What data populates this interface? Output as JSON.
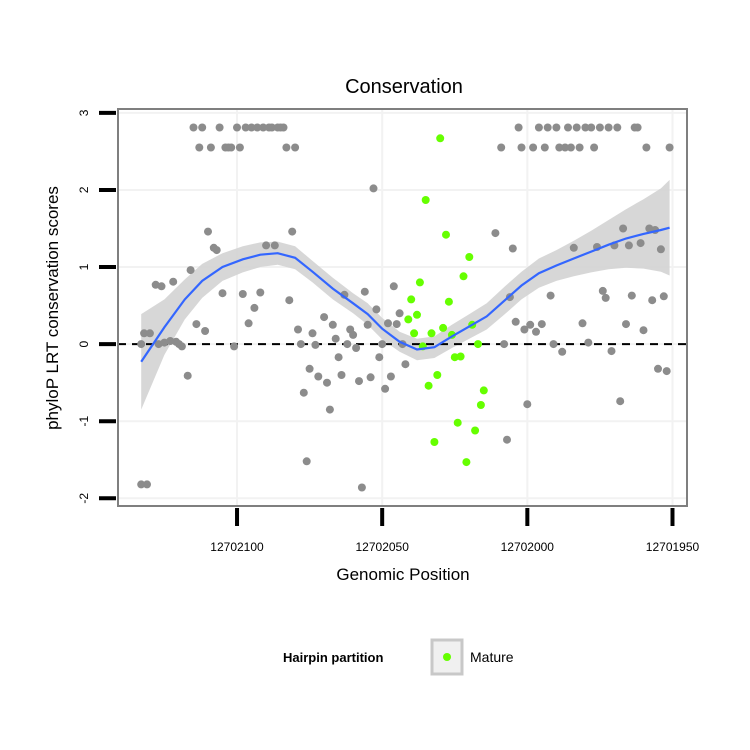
{
  "chart_data": {
    "type": "scatter",
    "title": "Conservation",
    "xlabel": "Genomic Position",
    "ylabel": "phyloP LRT conservation scores",
    "x_reversed": true,
    "xlim": [
      12702141,
      12701945
    ],
    "ylim": [
      -2.1,
      3.05
    ],
    "x_ticks": [
      {
        "value": 12702100,
        "label": "12702100"
      },
      {
        "value": 12702050,
        "label": "12702050"
      },
      {
        "value": 12702000,
        "label": "12702000"
      },
      {
        "value": 12701950,
        "label": "12701950"
      }
    ],
    "y_ticks": [
      {
        "value": -2,
        "label": "-2"
      },
      {
        "value": -1,
        "label": "-1"
      },
      {
        "value": 0,
        "label": "0"
      },
      {
        "value": 1,
        "label": "1"
      },
      {
        "value": 2,
        "label": "2"
      },
      {
        "value": 3,
        "label": "3"
      }
    ],
    "grid": true,
    "reference_line": {
      "y": 0,
      "style": "dashed"
    },
    "colors": {
      "other": "#8c8c8c",
      "mature": "#66ff00",
      "smooth_line": "#3366ff",
      "confidence_band": "#d3d3d3",
      "grid": "#f2f2f2",
      "panel_border": "#7f7f7f"
    },
    "series": [
      {
        "name": "",
        "role": "other",
        "points": [
          [
            12702133,
            0.0
          ],
          [
            12702133,
            -1.82
          ],
          [
            12702131,
            -1.82
          ],
          [
            12702132,
            0.14
          ],
          [
            12702130,
            0.14
          ],
          [
            12702128,
            0.77
          ],
          [
            12702126,
            0.75
          ],
          [
            12702127,
            0.0
          ],
          [
            12702125,
            0.02
          ],
          [
            12702123,
            0.04
          ],
          [
            12702122,
            0.81
          ],
          [
            12702121,
            0.03
          ],
          [
            12702120,
            0.0
          ],
          [
            12702119,
            -0.03
          ],
          [
            12702117,
            -0.41
          ],
          [
            12702116,
            0.96
          ],
          [
            12702115,
            2.81
          ],
          [
            12702114,
            0.26
          ],
          [
            12702113,
            2.55
          ],
          [
            12702112,
            2.81
          ],
          [
            12702111,
            0.17
          ],
          [
            12702110,
            1.46
          ],
          [
            12702109,
            2.55
          ],
          [
            12702108,
            1.25
          ],
          [
            12702107,
            1.22
          ],
          [
            12702106,
            2.81
          ],
          [
            12702105,
            0.66
          ],
          [
            12702104,
            2.55
          ],
          [
            12702103,
            2.55
          ],
          [
            12702102,
            2.55
          ],
          [
            12702101,
            -0.03
          ],
          [
            12702100,
            2.81
          ],
          [
            12702099,
            2.55
          ],
          [
            12702098,
            0.65
          ],
          [
            12702097,
            2.81
          ],
          [
            12702096,
            0.27
          ],
          [
            12702095,
            2.81
          ],
          [
            12702094,
            0.47
          ],
          [
            12702093,
            2.81
          ],
          [
            12702092,
            0.67
          ],
          [
            12702091,
            2.81
          ],
          [
            12702090,
            1.28
          ],
          [
            12702089,
            2.81
          ],
          [
            12702088,
            2.81
          ],
          [
            12702087,
            1.28
          ],
          [
            12702086,
            2.81
          ],
          [
            12702085,
            2.81
          ],
          [
            12702084,
            2.81
          ],
          [
            12702083,
            2.55
          ],
          [
            12702082,
            0.57
          ],
          [
            12702081,
            1.46
          ],
          [
            12702080,
            2.55
          ],
          [
            12702079,
            0.19
          ],
          [
            12702078,
            0.0
          ],
          [
            12702077,
            -0.63
          ],
          [
            12702076,
            -1.52
          ],
          [
            12702075,
            -0.32
          ],
          [
            12702074,
            0.14
          ],
          [
            12702073,
            -0.01
          ],
          [
            12702072,
            -0.42
          ],
          [
            12702070,
            0.35
          ],
          [
            12702069,
            -0.5
          ],
          [
            12702068,
            -0.85
          ],
          [
            12702067,
            0.25
          ],
          [
            12702066,
            0.07
          ],
          [
            12702065,
            -0.17
          ],
          [
            12702064,
            -0.4
          ],
          [
            12702063,
            0.64
          ],
          [
            12702062,
            0.0
          ],
          [
            12702061,
            0.19
          ],
          [
            12702060,
            0.12
          ],
          [
            12702059,
            -0.05
          ],
          [
            12702058,
            -0.48
          ],
          [
            12702057,
            -1.86
          ],
          [
            12702056,
            0.68
          ],
          [
            12702055,
            0.25
          ],
          [
            12702054,
            -0.43
          ],
          [
            12702053,
            2.02
          ],
          [
            12702052,
            0.45
          ],
          [
            12702051,
            -0.17
          ],
          [
            12702050,
            0.0
          ],
          [
            12702049,
            -0.58
          ],
          [
            12702048,
            0.27
          ],
          [
            12702047,
            -0.42
          ],
          [
            12702046,
            0.75
          ],
          [
            12702045,
            0.26
          ],
          [
            12702044,
            0.4
          ],
          [
            12702043,
            0.0
          ],
          [
            12702042,
            -0.26
          ],
          [
            12702011,
            1.44
          ],
          [
            12702009,
            2.55
          ],
          [
            12702008,
            0.0
          ],
          [
            12702007,
            -1.24
          ],
          [
            12702006,
            0.61
          ],
          [
            12702005,
            1.24
          ],
          [
            12702004,
            0.29
          ],
          [
            12702003,
            2.81
          ],
          [
            12702002,
            2.55
          ],
          [
            12702001,
            0.19
          ],
          [
            12702000,
            -0.78
          ],
          [
            12701999,
            0.25
          ],
          [
            12701998,
            2.55
          ],
          [
            12701997,
            0.16
          ],
          [
            12701996,
            2.81
          ],
          [
            12701995,
            0.26
          ],
          [
            12701994,
            2.55
          ],
          [
            12701993,
            2.81
          ],
          [
            12701992,
            0.63
          ],
          [
            12701991,
            0.0
          ],
          [
            12701990,
            2.81
          ],
          [
            12701989,
            2.55
          ],
          [
            12701988,
            -0.1
          ],
          [
            12701987,
            2.55
          ],
          [
            12701986,
            2.81
          ],
          [
            12701985,
            2.55
          ],
          [
            12701984,
            1.25
          ],
          [
            12701983,
            2.81
          ],
          [
            12701982,
            2.55
          ],
          [
            12701981,
            0.27
          ],
          [
            12701980,
            2.81
          ],
          [
            12701979,
            0.02
          ],
          [
            12701978,
            2.81
          ],
          [
            12701977,
            2.55
          ],
          [
            12701976,
            1.26
          ],
          [
            12701975,
            2.81
          ],
          [
            12701974,
            0.69
          ],
          [
            12701973,
            0.6
          ],
          [
            12701972,
            2.81
          ],
          [
            12701971,
            -0.09
          ],
          [
            12701970,
            1.28
          ],
          [
            12701969,
            2.81
          ],
          [
            12701968,
            -0.74
          ],
          [
            12701967,
            1.5
          ],
          [
            12701966,
            0.26
          ],
          [
            12701965,
            1.28
          ],
          [
            12701964,
            0.63
          ],
          [
            12701963,
            2.81
          ],
          [
            12701962,
            2.81
          ],
          [
            12701961,
            1.31
          ],
          [
            12701960,
            0.18
          ],
          [
            12701959,
            2.55
          ],
          [
            12701958,
            1.5
          ],
          [
            12701957,
            0.57
          ],
          [
            12701956,
            1.48
          ],
          [
            12701955,
            -0.32
          ],
          [
            12701954,
            1.23
          ],
          [
            12701953,
            0.62
          ],
          [
            12701952,
            -0.35
          ],
          [
            12701951,
            2.55
          ]
        ]
      },
      {
        "name": "Mature",
        "role": "mature",
        "points": [
          [
            12702041,
            0.32
          ],
          [
            12702040,
            0.58
          ],
          [
            12702039,
            0.14
          ],
          [
            12702038,
            0.38
          ],
          [
            12702037,
            0.8
          ],
          [
            12702036,
            -0.03
          ],
          [
            12702035,
            1.87
          ],
          [
            12702034,
            -0.54
          ],
          [
            12702033,
            0.14
          ],
          [
            12702032,
            -1.27
          ],
          [
            12702031,
            -0.4
          ],
          [
            12702030,
            2.67
          ],
          [
            12702029,
            0.21
          ],
          [
            12702028,
            1.42
          ],
          [
            12702027,
            0.55
          ],
          [
            12702026,
            0.12
          ],
          [
            12702025,
            -0.17
          ],
          [
            12702024,
            -1.02
          ],
          [
            12702023,
            -0.16
          ],
          [
            12702022,
            0.88
          ],
          [
            12702021,
            -1.53
          ],
          [
            12702020,
            1.13
          ],
          [
            12702019,
            0.25
          ],
          [
            12702018,
            -1.12
          ],
          [
            12702017,
            0.0
          ],
          [
            12702016,
            -0.79
          ],
          [
            12702015,
            -0.6
          ]
        ]
      }
    ],
    "smooth": {
      "x": [
        12702133,
        12702125,
        12702118,
        12702112,
        12702105,
        12702098,
        12702092,
        12702086,
        12702080,
        12702074,
        12702067,
        12702060,
        12702055,
        12702050,
        12702044,
        12702038,
        12702032,
        12702026,
        12702020,
        12702014,
        12702008,
        12702002,
        12701996,
        12701990,
        12701984,
        12701978,
        12701972,
        12701966,
        12701960,
        12701954,
        12701951
      ],
      "y": [
        -0.23,
        0.22,
        0.58,
        0.82,
        1.0,
        1.1,
        1.16,
        1.18,
        1.12,
        0.94,
        0.72,
        0.53,
        0.39,
        0.2,
        0.03,
        -0.07,
        -0.04,
        0.1,
        0.23,
        0.36,
        0.56,
        0.76,
        0.92,
        1.02,
        1.11,
        1.2,
        1.29,
        1.37,
        1.43,
        1.48,
        1.51
      ],
      "lower": [
        -0.85,
        -0.14,
        0.32,
        0.6,
        0.82,
        0.93,
        1.0,
        1.03,
        0.97,
        0.8,
        0.58,
        0.4,
        0.25,
        0.06,
        -0.1,
        -0.21,
        -0.18,
        -0.05,
        0.07,
        0.19,
        0.38,
        0.58,
        0.73,
        0.82,
        0.88,
        0.93,
        0.97,
        0.99,
        0.98,
        0.94,
        0.89
      ],
      "upper": [
        0.39,
        0.58,
        0.84,
        1.04,
        1.18,
        1.27,
        1.32,
        1.33,
        1.27,
        1.08,
        0.86,
        0.66,
        0.53,
        0.34,
        0.16,
        0.07,
        0.1,
        0.25,
        0.39,
        0.53,
        0.74,
        0.94,
        1.11,
        1.22,
        1.34,
        1.47,
        1.61,
        1.75,
        1.88,
        2.02,
        2.13
      ]
    },
    "legend": {
      "title": "Hairpin partition",
      "entries": [
        {
          "label": "Mature",
          "role": "mature"
        }
      ],
      "placement": "bottom"
    }
  }
}
